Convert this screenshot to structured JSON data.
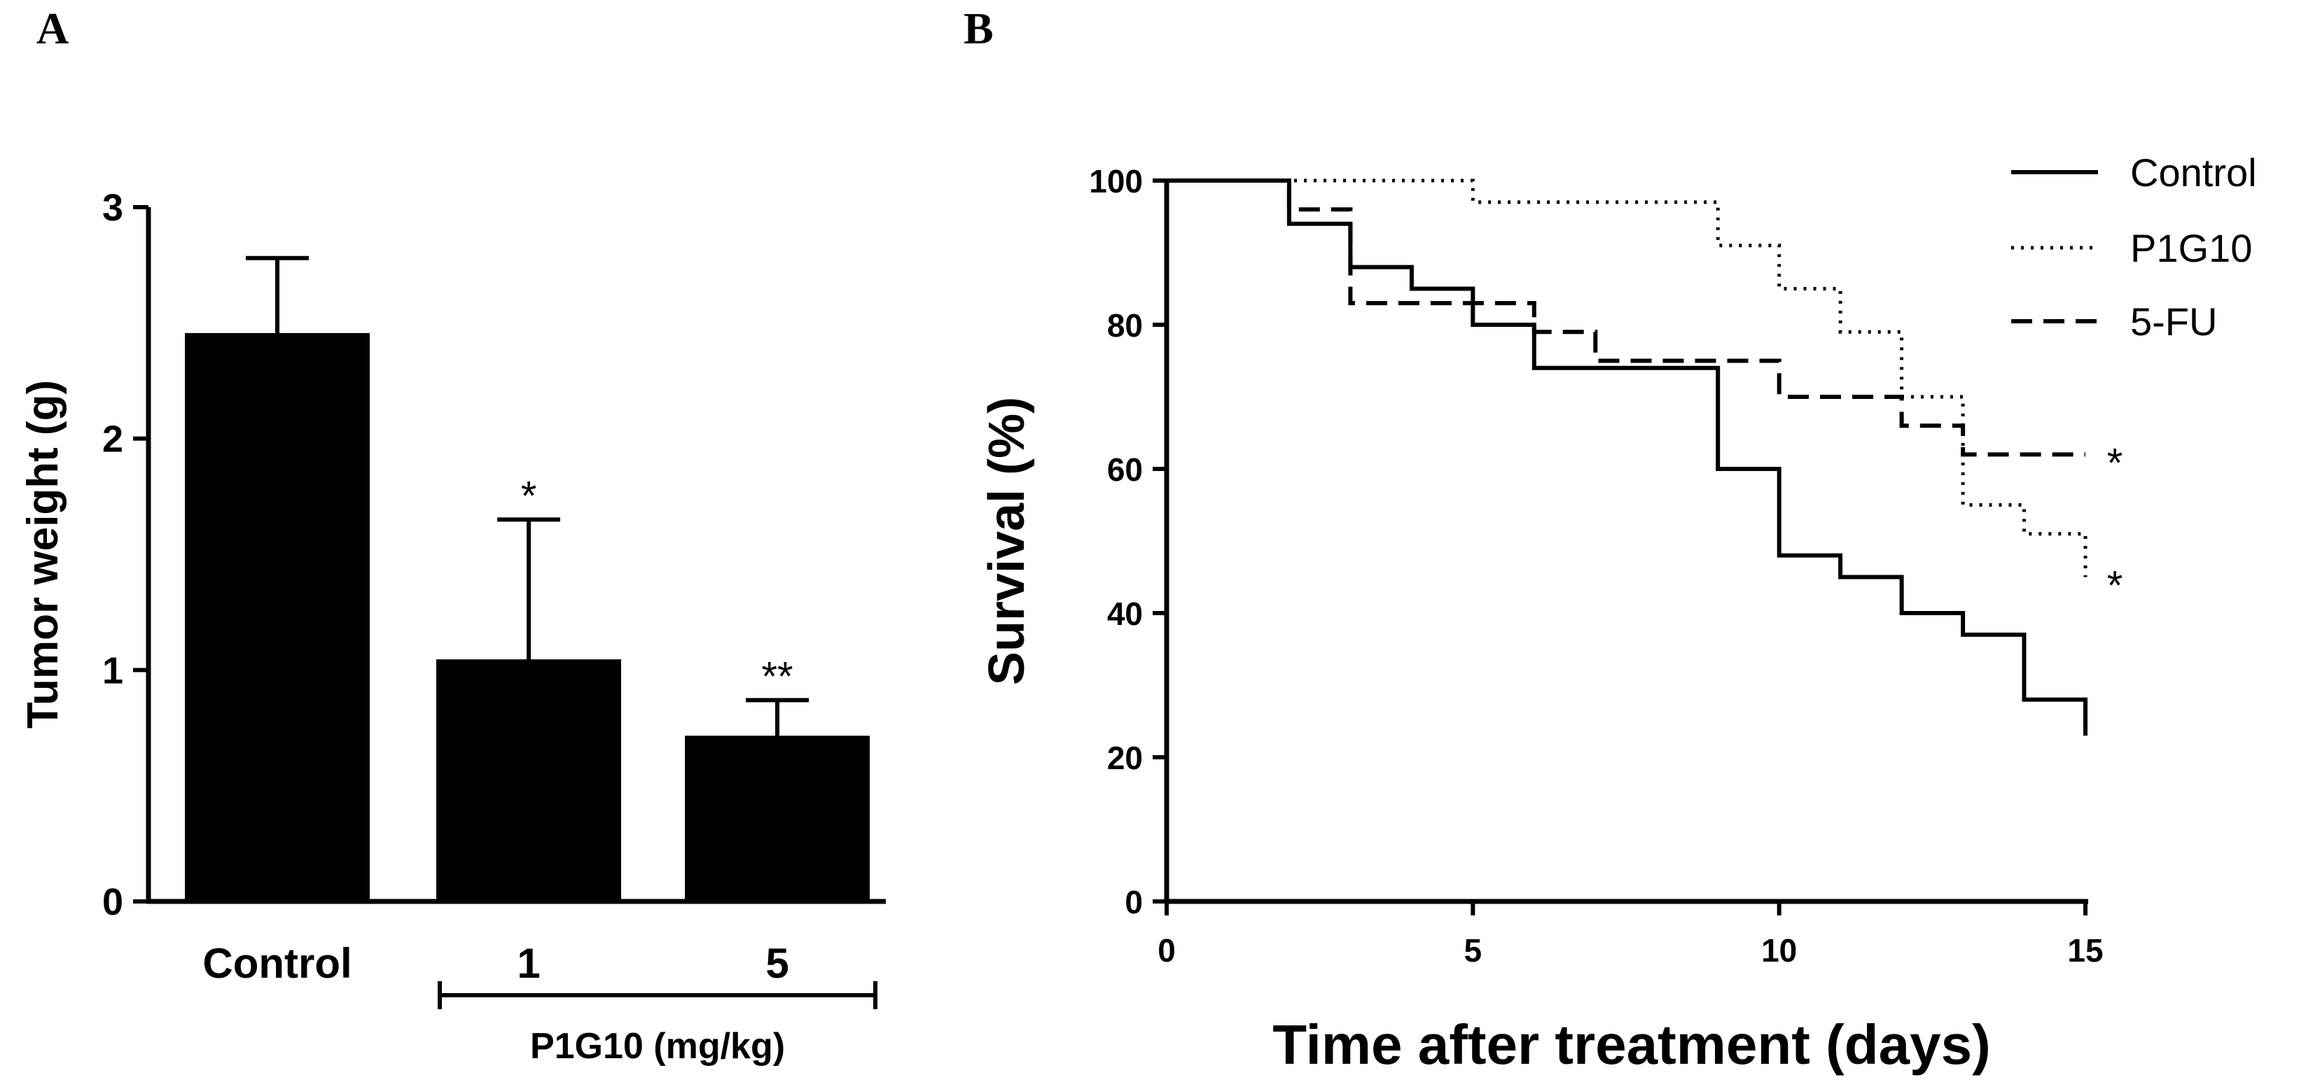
{
  "panels": {
    "a": "A",
    "b": "B"
  },
  "chart_data": [
    {
      "type": "bar",
      "title": "",
      "xlabel": "",
      "ylabel": "Tumor weight (g)",
      "ylim": [
        0,
        3
      ],
      "yticks": [
        "0",
        "1",
        "2",
        "3"
      ],
      "categories": [
        "Control",
        "1",
        "5"
      ],
      "values": [
        2.45,
        1.04,
        0.71
      ],
      "errors": [
        0.33,
        0.61,
        0.16
      ],
      "significance": [
        "",
        "*",
        "**"
      ],
      "group_label": "P1G10 (mg/kg)",
      "bar_color": "#000000"
    },
    {
      "type": "line",
      "title": "",
      "xlabel": "Time after treatment (days)",
      "ylabel": "Survival (%)",
      "xlim": [
        0,
        15
      ],
      "ylim": [
        0,
        100
      ],
      "xticks": [
        "0",
        "5",
        "10",
        "15"
      ],
      "yticks": [
        "0",
        "20",
        "40",
        "60",
        "80",
        "100"
      ],
      "series": [
        {
          "name": "Control",
          "style": "solid",
          "annotation": "",
          "x": [
            0,
            2,
            2,
            3,
            3,
            4,
            4,
            5,
            5,
            6,
            6,
            9,
            9,
            10,
            10,
            11,
            11,
            12,
            12,
            13,
            13,
            14,
            14,
            15,
            15
          ],
          "y": [
            100,
            100,
            94,
            94,
            88,
            88,
            85,
            85,
            80,
            80,
            74,
            74,
            60,
            60,
            48,
            48,
            45,
            45,
            40,
            40,
            37,
            37,
            28,
            28,
            23
          ]
        },
        {
          "name": "P1G10",
          "style": "dotted",
          "annotation": "*",
          "x": [
            0,
            5,
            5,
            9,
            9,
            10,
            10,
            11,
            11,
            12,
            12,
            13,
            13,
            14,
            14,
            15,
            15
          ],
          "y": [
            100,
            100,
            97,
            97,
            91,
            91,
            85,
            85,
            79,
            79,
            70,
            70,
            55,
            55,
            51,
            51,
            45
          ]
        },
        {
          "name": "5-FU",
          "style": "dashed",
          "annotation": "*",
          "x": [
            0,
            2,
            2,
            3,
            3,
            6,
            6,
            7,
            7,
            10,
            10,
            12,
            12,
            13,
            13,
            15
          ],
          "y": [
            100,
            100,
            96,
            96,
            83,
            83,
            79,
            79,
            75,
            75,
            70,
            70,
            66,
            66,
            62,
            62
          ]
        }
      ]
    }
  ]
}
